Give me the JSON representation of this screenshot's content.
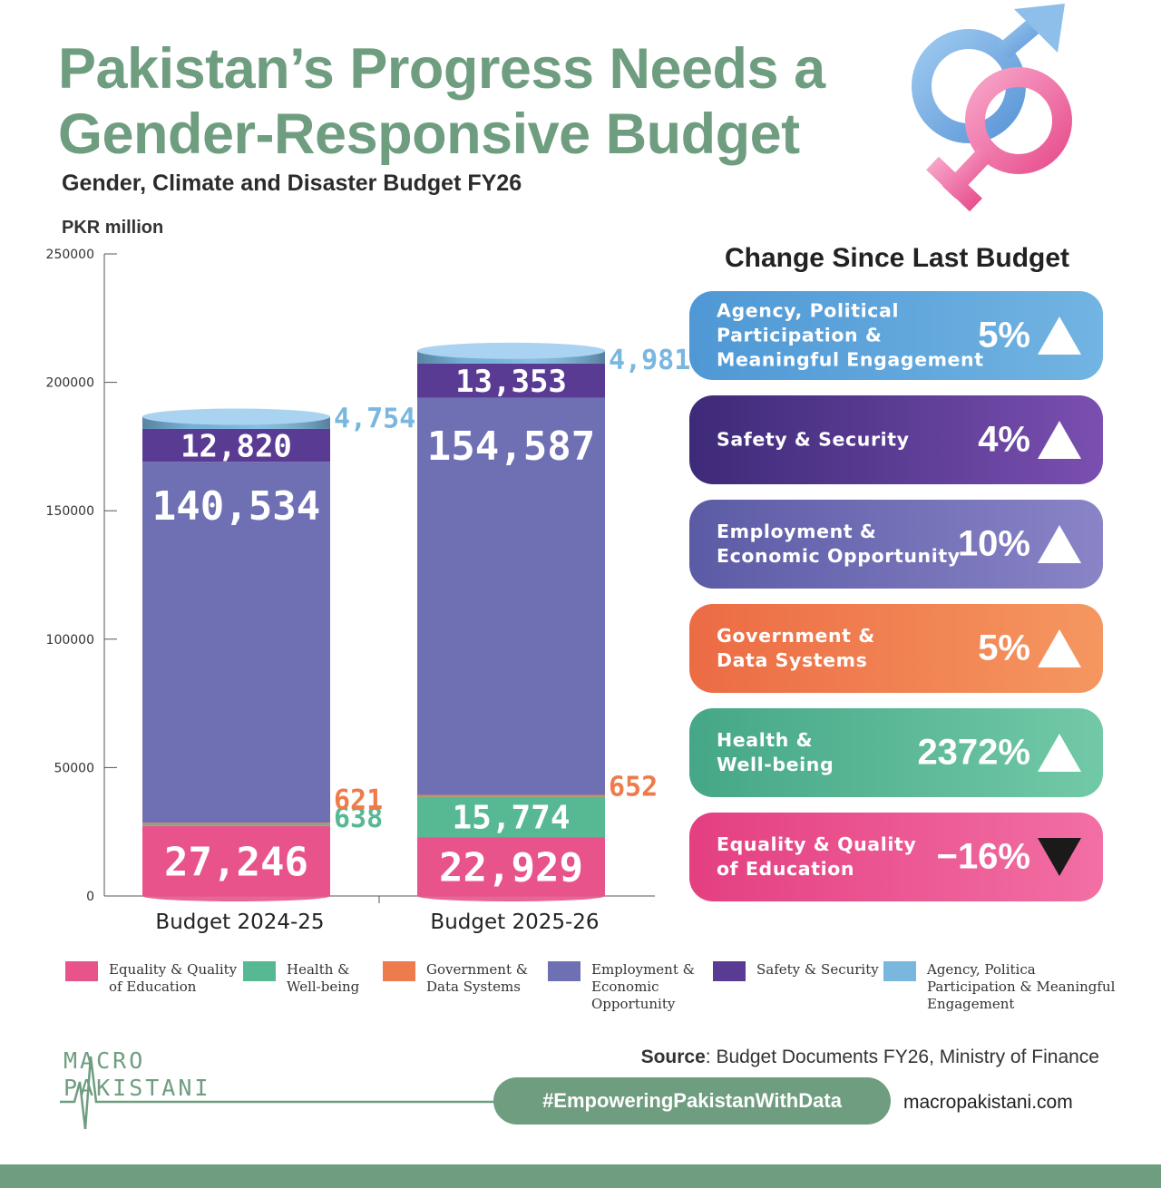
{
  "header": {
    "title_line1": "Pakistan’s Progress Needs a",
    "title_line2": "Gender-Responsive Budget",
    "subtitle": "Gender, Climate and Disaster Budget FY26",
    "unit": "PKR million"
  },
  "colors": {
    "accent": "#6f9d80",
    "education": "#e9538c",
    "health": "#57b894",
    "government": "#ee7b4b",
    "employment": "#6f70b4",
    "safety": "#5a3b94",
    "agency": "#7ab7df"
  },
  "chart_data": {
    "type": "bar",
    "stacked": true,
    "ylabel": "PKR million",
    "ylim": [
      0,
      250000
    ],
    "yticks": [
      0,
      50000,
      100000,
      150000,
      200000,
      250000
    ],
    "categories": [
      "Budget 2024-25",
      "Budget 2025-26"
    ],
    "series": [
      {
        "name": "Equality & Quality of Education",
        "key": "education",
        "values": [
          27246,
          22929
        ],
        "labels": [
          "27,246",
          "22,929"
        ]
      },
      {
        "name": "Health & Well-being",
        "key": "health",
        "values": [
          638,
          15774
        ],
        "labels": [
          "638",
          "15,774"
        ]
      },
      {
        "name": "Government & Data Systems",
        "key": "government",
        "values": [
          621,
          652
        ],
        "labels": [
          "621",
          "652"
        ]
      },
      {
        "name": "Employment & Economic Opportunity",
        "key": "employment",
        "values": [
          140534,
          154587
        ],
        "labels": [
          "140,534",
          "154,587"
        ]
      },
      {
        "name": "Safety & Security",
        "key": "safety",
        "values": [
          12820,
          13353
        ],
        "labels": [
          "12,820",
          "13,353"
        ]
      },
      {
        "name": "Agency, Political Participation & Meaningful Engagement",
        "key": "agency",
        "values": [
          4754,
          4981
        ],
        "labels": [
          "4,754",
          "4,981"
        ]
      }
    ]
  },
  "changes": {
    "title": "Change Since Last Budget",
    "items": [
      {
        "label": "Agency, Political\nParticipation &\nMeaningful Engagement",
        "pct": "5%",
        "direction": "up",
        "color_from": "#4f98d5",
        "color_to": "#72b4e2"
      },
      {
        "label": "Safety & Security",
        "pct": "4%",
        "direction": "up",
        "color_from": "#3d2a78",
        "color_to": "#7a4fb0"
      },
      {
        "label": "Employment &\nEconomic Opportunity",
        "pct": "10%",
        "direction": "up",
        "color_from": "#5b5ba5",
        "color_to": "#8a84c7"
      },
      {
        "label": "Government &\nData Systems",
        "pct": "5%",
        "direction": "up",
        "color_from": "#ec6b44",
        "color_to": "#f59760"
      },
      {
        "label": "Health &\nWell-being",
        "pct": "2372%",
        "direction": "up",
        "color_from": "#45a787",
        "color_to": "#72c9a7"
      },
      {
        "label": "Equality & Quality\nof Education",
        "pct": "-16%",
        "direction": "down",
        "color_from": "#e43f80",
        "color_to": "#f26fa4"
      }
    ]
  },
  "legend": [
    {
      "label": "Equality & Quality\nof Education",
      "key": "education"
    },
    {
      "label": "Health &\nWell-being",
      "key": "health"
    },
    {
      "label": "Government &\nData Systems",
      "key": "government"
    },
    {
      "label": "Employment &\nEconomic\nOpportunity",
      "key": "employment"
    },
    {
      "label": "Safety & Security",
      "key": "safety"
    },
    {
      "label": "Agency, Politica\nParticipation & Meaningful\nEngagement",
      "key": "agency"
    }
  ],
  "footer": {
    "logo_line1": "MACRO",
    "logo_line2": "PAKISTANI",
    "source_label": "Source",
    "source_text": ": Budget Documents FY26, Ministry of Finance",
    "hashtag": "#EmpoweringPakistanWithData",
    "website": "macropakistani.com"
  }
}
